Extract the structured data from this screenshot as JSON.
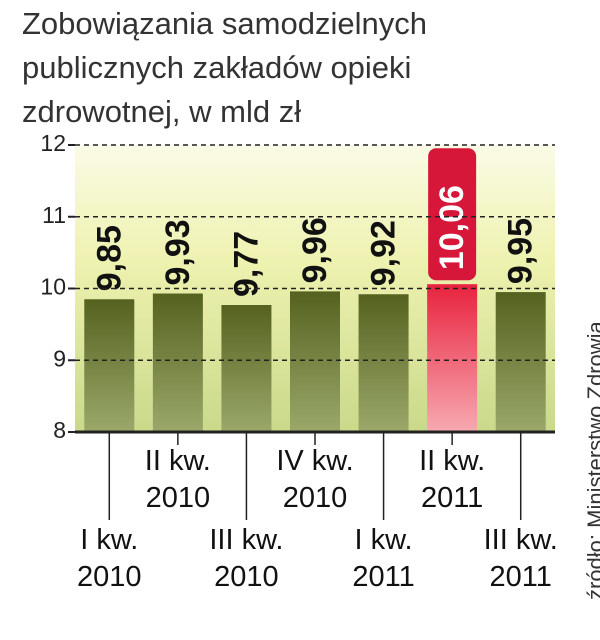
{
  "chart_data": {
    "type": "bar",
    "title": "Zobowiązania samodzielnych publicznych zakładów opieki zdrowotnej, w mld zł",
    "source": "źródło: Ministerstwo Zdrowia",
    "categories": [
      "I kw. 2010",
      "II kw. 2010",
      "III kw. 2010",
      "IV kw. 2010",
      "I kw. 2011",
      "II kw. 2011",
      "III kw. 2011"
    ],
    "values": [
      9.85,
      9.93,
      9.77,
      9.96,
      9.92,
      10.06,
      9.95
    ],
    "value_labels": [
      "9,85",
      "9,93",
      "9,77",
      "9,96",
      "9,92",
      "10,06",
      "9,95"
    ],
    "color": "#5a6625",
    "colors": [
      "#5a6625",
      "#5a6625",
      "#5a6625",
      "#5a6625",
      "#5a6625",
      "#d6173a",
      "#5a6625"
    ],
    "ylim": [
      8,
      12
    ],
    "yticks": [
      8,
      9,
      10,
      11,
      12
    ],
    "grid": true
  }
}
